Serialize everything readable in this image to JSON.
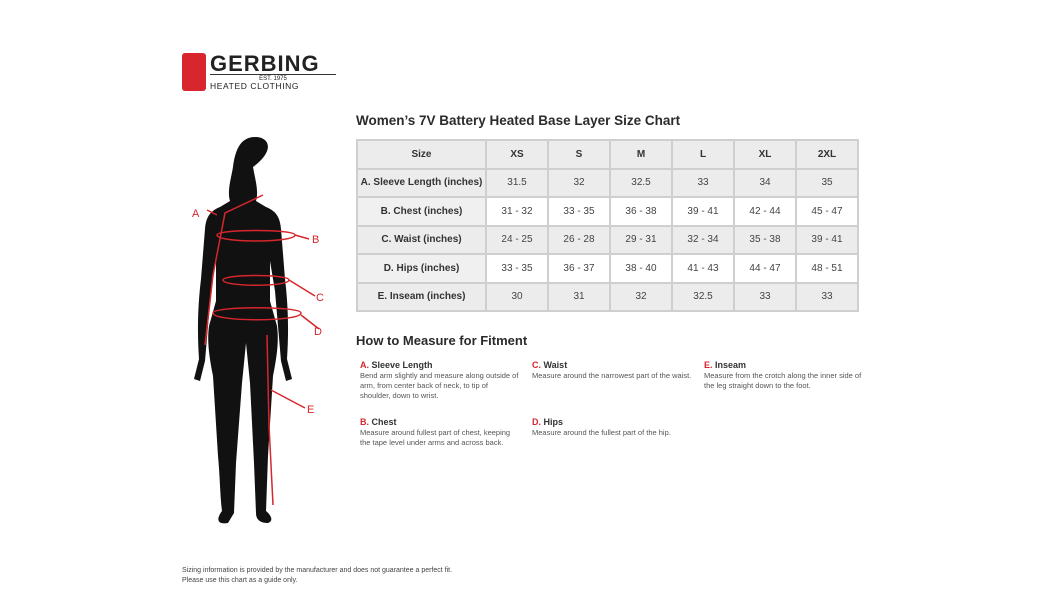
{
  "logo": {
    "name": "GERBING",
    "est": "EST. 1975",
    "tagline": "HEATED CLOTHING"
  },
  "title": "Women’s 7V Battery Heated Base Layer Size Chart",
  "table": {
    "headers": [
      "Size",
      "XS",
      "S",
      "M",
      "L",
      "XL",
      "2XL"
    ],
    "rows": [
      {
        "label": "A. Sleeve Length (inches)",
        "values": [
          "31.5",
          "32",
          "32.5",
          "33",
          "34",
          "35"
        ]
      },
      {
        "label": "B. Chest (inches)",
        "values": [
          "31 - 32",
          "33 - 35",
          "36 - 38",
          "39 - 41",
          "42 - 44",
          "45 - 47"
        ]
      },
      {
        "label": "C. Waist (inches)",
        "values": [
          "24 - 25",
          "26 - 28",
          "29 - 31",
          "32 - 34",
          "35 - 38",
          "39 - 41"
        ]
      },
      {
        "label": "D. Hips (inches)",
        "values": [
          "33 - 35",
          "36 - 37",
          "38 - 40",
          "41 - 43",
          "44 - 47",
          "48 - 51"
        ]
      },
      {
        "label": "E. Inseam (inches)",
        "values": [
          "30",
          "31",
          "32",
          "32.5",
          "33",
          "33"
        ]
      }
    ]
  },
  "measure": {
    "title": "How to Measure for Fitment",
    "items": [
      {
        "letter": "A.",
        "name": "Sleeve Length",
        "text": "Bend arm slightly and measure along outside of arm, from center back of neck, to tip of shoulder, down to wrist."
      },
      {
        "letter": "B.",
        "name": "Chest",
        "text": "Measure around fullest part of chest, keeping the tape level under arms and across back."
      },
      {
        "letter": "C.",
        "name": "Waist",
        "text": "Measure around the narrowest part of the waist."
      },
      {
        "letter": "D.",
        "name": "Hips",
        "text": "Measure around the fullest part of the hip."
      },
      {
        "letter": "E.",
        "name": "Inseam",
        "text": "Measure from the crotch along the inner side of the leg straight down to the foot."
      }
    ]
  },
  "figure_labels": [
    "A",
    "B",
    "C",
    "D",
    "E"
  ],
  "footer": [
    "Sizing information is provided by the manufacturer and does not guarantee a perfect fit.",
    "Please use this chart as a guide only."
  ],
  "colors": {
    "accent": "#d7262d",
    "table_border": "#cfcfcf",
    "header_bg": "#ececec"
  }
}
